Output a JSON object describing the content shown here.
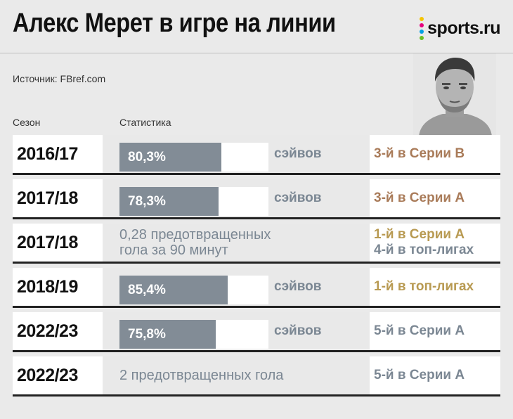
{
  "header": {
    "title": "Алекс Мерет в игре на линии",
    "logo_text": "sports.ru",
    "logo_dot_colors": [
      "#f5c400",
      "#e6007e",
      "#00a0e3",
      "#6bbf23"
    ]
  },
  "source": "Источник: FBref.com",
  "columns": {
    "season": "Сезон",
    "stat": "Статистика"
  },
  "colors": {
    "bar": "#828c96",
    "rank_serie_b_2016": "#a97b59",
    "rank_gold": "#b89a52",
    "rank_gray": "#7b8793"
  },
  "chart_data": {
    "type": "table",
    "unit_label": "сэйвов",
    "rows": [
      {
        "season": "2016/17",
        "kind": "bar",
        "value": 80.3,
        "value_label": "80,3%",
        "unit": "сэйвов",
        "ranks": [
          {
            "text": "3-й в Серии B",
            "color": "#a97b59"
          }
        ]
      },
      {
        "season": "2017/18",
        "kind": "bar",
        "value": 78.3,
        "value_label": "78,3%",
        "unit": "сэйвов",
        "ranks": [
          {
            "text": "3-й в Серии А",
            "color": "#a97b59"
          }
        ]
      },
      {
        "season": "2017/18",
        "kind": "text",
        "text_lines": [
          "0,28 предотвращенных",
          "гола за 90 минут"
        ],
        "ranks": [
          {
            "text": "1-й в Серии А",
            "color": "#b89a52"
          },
          {
            "text": "4-й в топ-лигах",
            "color": "#7b8793"
          }
        ]
      },
      {
        "season": "2018/19",
        "kind": "bar",
        "value": 85.4,
        "value_label": "85,4%",
        "unit": "сэйвов",
        "ranks": [
          {
            "text": "1-й в топ-лигах",
            "color": "#b89a52"
          }
        ]
      },
      {
        "season": "2022/23",
        "kind": "bar",
        "value": 75.8,
        "value_label": "75,8%",
        "unit": "сэйвов",
        "ranks": [
          {
            "text": "5-й в Серии А",
            "color": "#7b8793"
          }
        ]
      },
      {
        "season": "2022/23",
        "kind": "text",
        "text_lines": [
          "2 предотвращенных гола"
        ],
        "ranks": [
          {
            "text": "5-й в Серии А",
            "color": "#7b8793"
          }
        ]
      }
    ]
  }
}
